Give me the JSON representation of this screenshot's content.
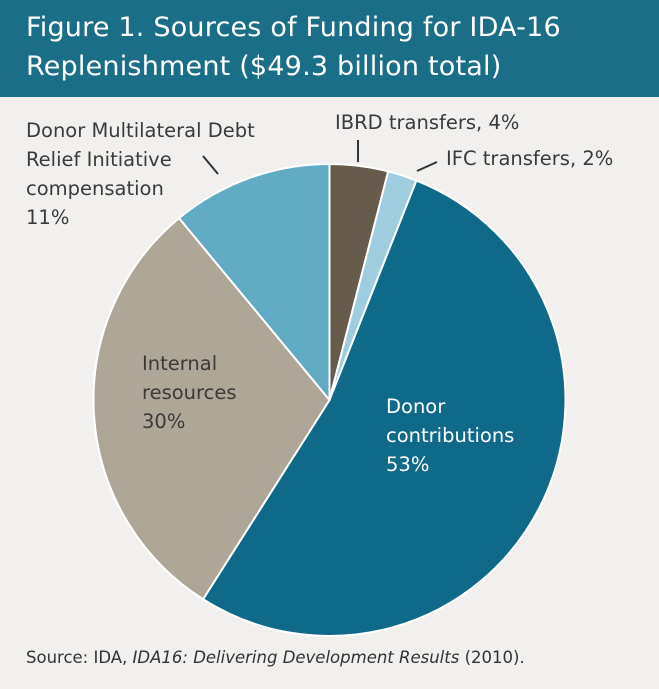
{
  "header": {
    "title_line1": "Figure 1. Sources of Funding for IDA-16",
    "title_line2": "Replenishment ($49.3 billion total)"
  },
  "chart_data": {
    "type": "pie",
    "title": "Figure 1. Sources of Funding for IDA-16 Replenishment ($49.3 billion total)",
    "slices": [
      {
        "label": "IBRD transfers",
        "value": 4,
        "display": "IBRD transfers, 4%",
        "color": "#675b4b"
      },
      {
        "label": "IFC transfers",
        "value": 2,
        "display": "IFC transfers, 2%",
        "color": "#9ecde0"
      },
      {
        "label": "Donor contributions",
        "value": 53,
        "display_lines": [
          "Donor",
          "contributions",
          "53%"
        ],
        "color": "#0f6a8a"
      },
      {
        "label": "Internal resources",
        "value": 30,
        "display_lines": [
          "Internal",
          "resources",
          "30%"
        ],
        "color": "#aea697"
      },
      {
        "label": "Donor Multilateral Debt Relief Initiative compensation",
        "value": 11,
        "display_lines": [
          "Donor Multilateral Debt",
          "Relief Initiative",
          "compensation",
          "11%"
        ],
        "color": "#62abc5"
      }
    ]
  },
  "source": {
    "prefix": "Source: IDA, ",
    "italic": "IDA16: Delivering Development Results",
    "suffix": " (2010)."
  }
}
